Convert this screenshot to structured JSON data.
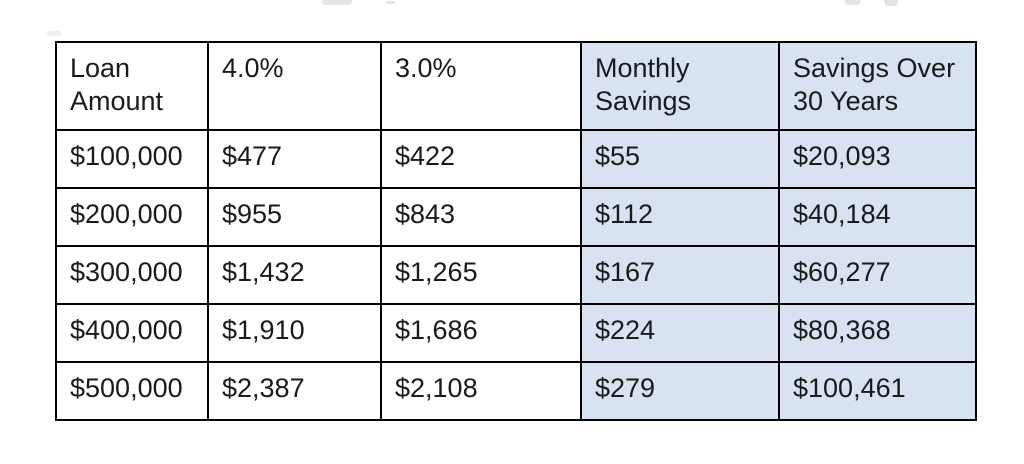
{
  "table": {
    "highlight_color": "#d8e2f0",
    "border_color": "#000000",
    "columns": [
      {
        "label": "Loan Amount",
        "highlighted": false
      },
      {
        "label": "4.0%",
        "highlighted": false
      },
      {
        "label": "3.0%",
        "highlighted": false
      },
      {
        "label": "Monthly Savings",
        "highlighted": true
      },
      {
        "label": "Savings Over 30 Years",
        "highlighted": true
      }
    ],
    "rows": [
      [
        "$100,000",
        "$477",
        "$422",
        "$55",
        "$20,093"
      ],
      [
        "$200,000",
        "$955",
        "$843",
        "$112",
        "$40,184"
      ],
      [
        "$300,000",
        "$1,432",
        "$1,265",
        "$167",
        "$60,277"
      ],
      [
        "$400,000",
        "$1,910",
        "$1,686",
        "$224",
        "$80,368"
      ],
      [
        "$500,000",
        "$2,387",
        "$2,108",
        "$279",
        "$100,461"
      ]
    ]
  },
  "chart_data": {
    "type": "table",
    "title": "",
    "categories": [
      "$100,000",
      "$200,000",
      "$300,000",
      "$400,000",
      "$500,000"
    ],
    "series": [
      {
        "name": "4.0%",
        "values": [
          477,
          955,
          1432,
          1910,
          2387
        ]
      },
      {
        "name": "3.0%",
        "values": [
          422,
          843,
          1265,
          1686,
          2108
        ]
      },
      {
        "name": "Monthly Savings",
        "values": [
          55,
          112,
          167,
          224,
          279
        ]
      },
      {
        "name": "Savings Over 30 Years",
        "values": [
          20093,
          40184,
          60277,
          80368,
          100461
        ]
      }
    ]
  }
}
